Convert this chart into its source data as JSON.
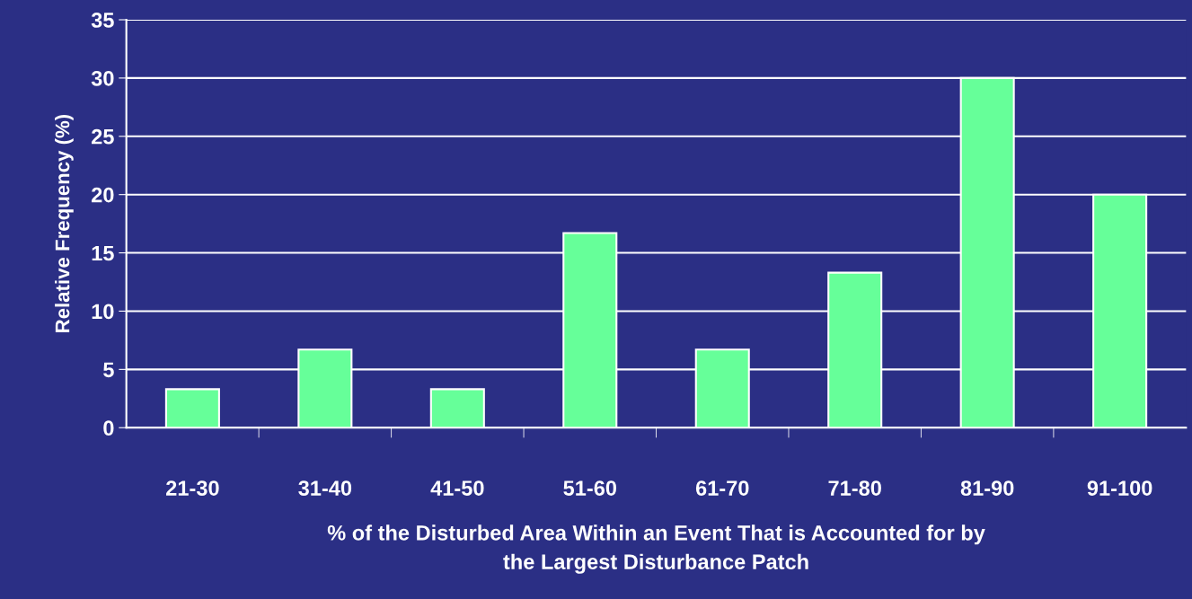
{
  "chart_data": {
    "type": "bar",
    "xlabel": "% of the Disturbed Area Within an Event That is Accounted for by\nthe Largest Disturbance Patch",
    "ylabel": "Relative Frequency (%)",
    "categories": [
      "21-30",
      "31-40",
      "41-50",
      "51-60",
      "61-70",
      "71-80",
      "81-90",
      "91-100"
    ],
    "values": [
      3.3,
      6.7,
      3.3,
      16.7,
      6.7,
      13.3,
      30,
      20
    ],
    "color": "#66ff99",
    "ylim": [
      0,
      35
    ],
    "yticks": [
      0,
      5,
      10,
      15,
      20,
      25,
      30,
      35
    ],
    "grid": "y",
    "legend": false
  }
}
